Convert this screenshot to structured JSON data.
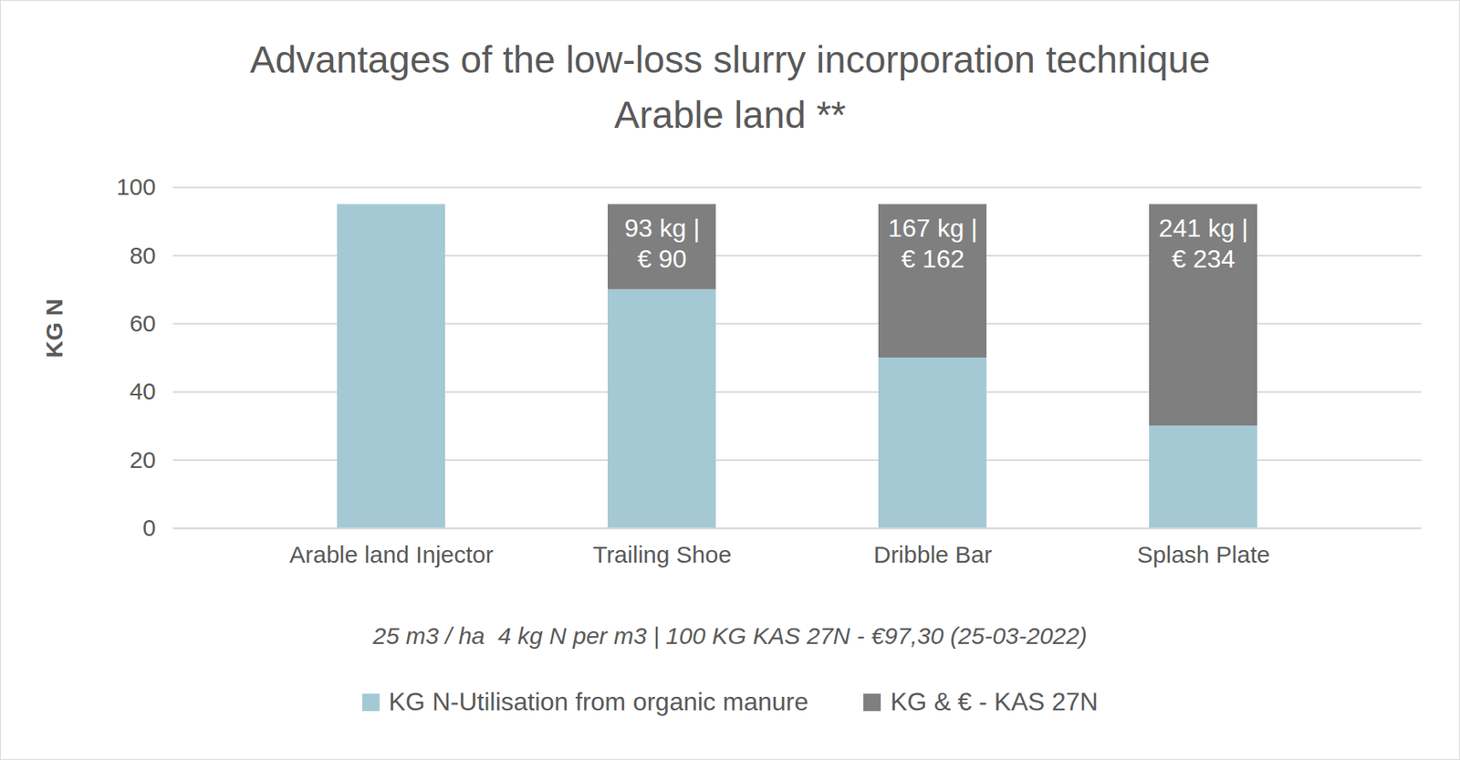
{
  "chart_data": {
    "type": "bar",
    "title": "Advantages of the low-loss slurry incorporation technique",
    "subtitle": "Arable land **",
    "caption": "25 m3 / ha  4 kg N per m3 | 100 KG KAS 27N - €97,30 (25-03-2022)",
    "y_label": "KG N",
    "categories": [
      "Arable land Injector",
      "Trailing Shoe",
      "Dribble Bar",
      "Splash Plate"
    ],
    "series": [
      {
        "name": "KG N-Utilisation from organic manure",
        "color": "#a5c9d4",
        "values": [
          95,
          70,
          50,
          30
        ]
      },
      {
        "name": "KG & € - KAS 27N",
        "color": "#7f7f7f",
        "values": [
          0,
          25,
          45,
          65
        ]
      }
    ],
    "annotations": [
      {
        "category": "Trailing Shoe",
        "text": "93 kg | € 90"
      },
      {
        "category": "Dribble Bar",
        "text": "167 kg | € 162"
      },
      {
        "category": "Splash Plate",
        "text": "241 kg | € 234"
      }
    ],
    "stacked": true,
    "ylim": [
      0,
      100
    ],
    "yticks": [
      0,
      20,
      40,
      60,
      80,
      100
    ],
    "grid": true,
    "legend": "bottom"
  }
}
